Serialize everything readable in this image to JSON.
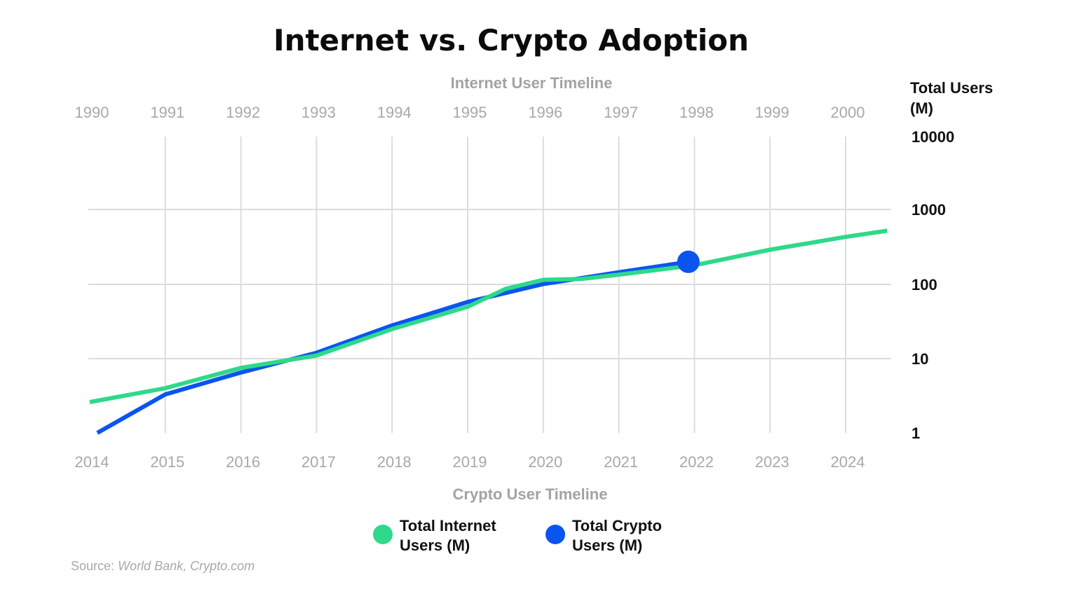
{
  "chart_data": {
    "type": "line",
    "title": "Internet vs. Crypto Adoption",
    "top_axis": {
      "title": "Internet User Timeline",
      "ticks": [
        "1990",
        "1991",
        "1992",
        "1993",
        "1994",
        "1995",
        "1996",
        "1997",
        "1998",
        "1999",
        "2000"
      ]
    },
    "bottom_axis": {
      "title": "Crypto User Timeline",
      "ticks": [
        "2014",
        "2015",
        "2016",
        "2017",
        "2018",
        "2019",
        "2020",
        "2021",
        "2022",
        "2023",
        "2024"
      ]
    },
    "y_axis": {
      "title_line1": "Total Users",
      "title_line2": "(M)",
      "scale": "log",
      "ticks": [
        {
          "value": 1,
          "label": "1"
        },
        {
          "value": 10,
          "label": "10"
        },
        {
          "value": 100,
          "label": "100"
        },
        {
          "value": 1000,
          "label": "1000"
        },
        {
          "value": 10000,
          "label": "10000"
        }
      ],
      "ylim": [
        1,
        10000
      ]
    },
    "series": [
      {
        "name": "Total Internet Users (M)",
        "legend_line1": "Total Internet",
        "legend_line2": "Users (M)",
        "color": "#2ed989",
        "axis": "top",
        "points": [
          {
            "x": 1990,
            "y": 2.6
          },
          {
            "x": 1991,
            "y": 4.0
          },
          {
            "x": 1992,
            "y": 7.5
          },
          {
            "x": 1993,
            "y": 11
          },
          {
            "x": 1994,
            "y": 25
          },
          {
            "x": 1995,
            "y": 50
          },
          {
            "x": 1995.5,
            "y": 87
          },
          {
            "x": 1996,
            "y": 115
          },
          {
            "x": 1996.5,
            "y": 118
          },
          {
            "x": 1997,
            "y": 135
          },
          {
            "x": 1998,
            "y": 180
          },
          {
            "x": 1999,
            "y": 290
          },
          {
            "x": 2000,
            "y": 430
          },
          {
            "x": 2000.55,
            "y": 520
          }
        ]
      },
      {
        "name": "Total Crypto Users (M)",
        "legend_line1": "Total Crypto",
        "legend_line2": "Users (M)",
        "color": "#0a55f0",
        "axis": "bottom",
        "points": [
          {
            "x": 2014.1,
            "y": 1.0
          },
          {
            "x": 2015,
            "y": 3.3
          },
          {
            "x": 2016,
            "y": 6.5
          },
          {
            "x": 2017,
            "y": 12
          },
          {
            "x": 2018,
            "y": 28
          },
          {
            "x": 2019,
            "y": 58
          },
          {
            "x": 2020,
            "y": 101
          },
          {
            "x": 2021,
            "y": 145
          },
          {
            "x": 2021.92,
            "y": 200
          }
        ],
        "end_marker": true
      }
    ],
    "source_label": "Source:",
    "source_text": "World Bank, Crypto.com"
  }
}
